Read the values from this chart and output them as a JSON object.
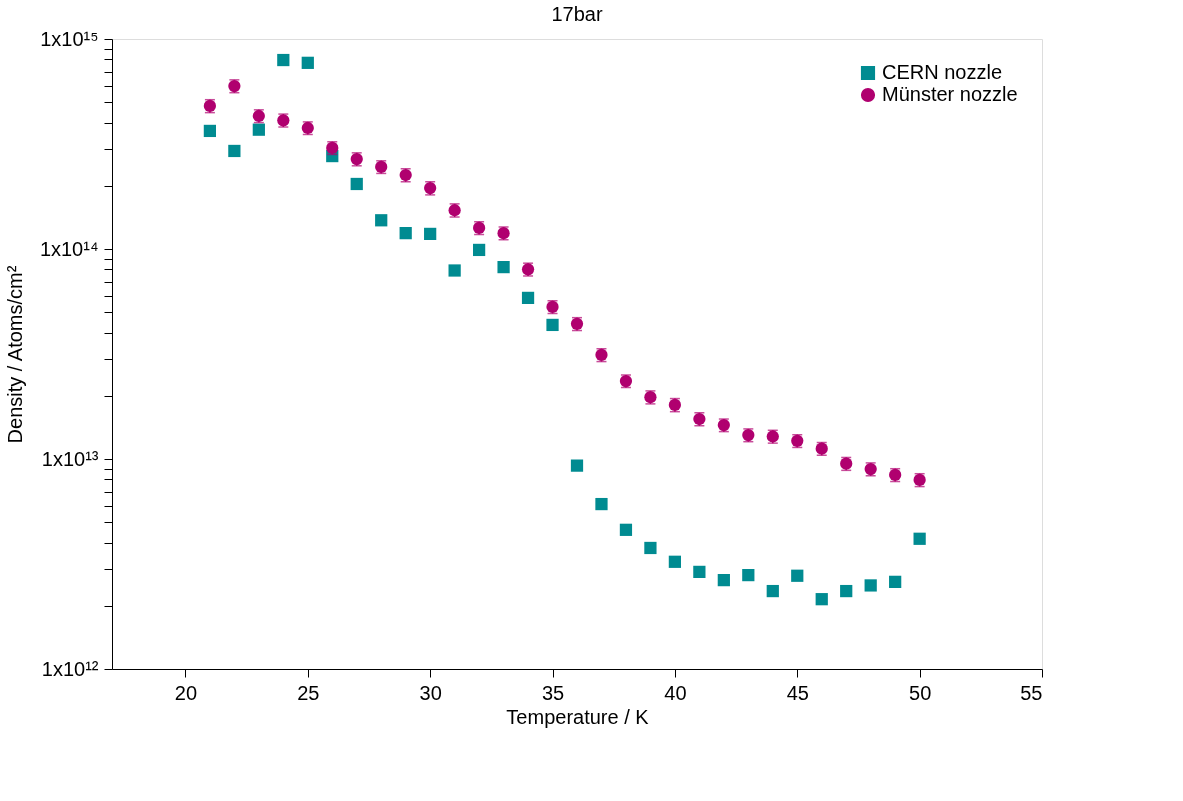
{
  "chart_data": {
    "type": "scatter",
    "title": "17bar",
    "xlabel": "Temperature / K",
    "ylabel": "Density / Atoms/cm²",
    "x": [
      21,
      22,
      23,
      24,
      25,
      26,
      27,
      28,
      29,
      30,
      31,
      32,
      33,
      34,
      35,
      36,
      37,
      38,
      39,
      40,
      41,
      42,
      43,
      44,
      45,
      46,
      47,
      48,
      49,
      50
    ],
    "series": [
      {
        "name": "CERN nozzle",
        "color": "#008b91",
        "marker": "square",
        "values": [
          365000000000000.0,
          293000000000000.0,
          370000000000000.0,
          794000000000000.0,
          770000000000000.0,
          277000000000000.0,
          204000000000000.0,
          137000000000000.0,
          119000000000000.0,
          118000000000000.0,
          79000000000000.0,
          99000000000000.0,
          82000000000000.0,
          58500000000000.0,
          43500000000000.0,
          9300000000000.0,
          6100000000000.0,
          4600000000000.0,
          3770000000000.0,
          3240000000000.0,
          2900000000000.0,
          2650000000000.0,
          2800000000000.0,
          2350000000000.0,
          2780000000000.0,
          2150000000000.0,
          2350000000000.0,
          2500000000000.0,
          2600000000000.0,
          4170000000000.0
        ]
      },
      {
        "name": "Münster nozzle",
        "color": "#b0006f",
        "marker": "circle",
        "values": [
          480000000000000.0,
          597000000000000.0,
          430000000000000.0,
          410000000000000.0,
          377000000000000.0,
          303000000000000.0,
          268000000000000.0,
          246000000000000.0,
          225000000000000.0,
          195000000000000.0,
          153000000000000.0,
          126000000000000.0,
          119000000000000.0,
          80000000000000.0,
          53000000000000.0,
          44000000000000.0,
          31300000000000.0,
          23500000000000.0,
          19700000000000.0,
          18100000000000.0,
          15500000000000.0,
          14500000000000.0,
          13000000000000.0,
          12800000000000.0,
          12200000000000.0,
          11200000000000.0,
          9500000000000.0,
          8950000000000.0,
          8400000000000.0,
          7950000000000.0
        ],
        "errors": [
          34000000000000.0,
          42000000000000.0,
          30000000000000.0,
          29000000000000.0,
          26000000000000.0,
          21000000000000.0,
          19000000000000.0,
          17000000000000.0,
          16000000000000.0,
          14000000000000.0,
          11000000000000.0,
          8800000000000.0,
          8300000000000.0,
          5600000000000.0,
          3700000000000.0,
          3100000000000.0,
          2200000000000.0,
          1600000000000.0,
          1400000000000.0,
          1300000000000.0,
          1100000000000.0,
          1000000000000.0,
          910000000000.0,
          900000000000.0,
          850000000000.0,
          780000000000.0,
          670000000000.0,
          630000000000.0,
          590000000000.0,
          560000000000.0
        ]
      }
    ],
    "xlim": [
      17,
      55
    ],
    "xticks": [
      20,
      25,
      30,
      35,
      40,
      45,
      50,
      55
    ],
    "log": true,
    "ylim": [
      1000000000000.0,
      1000000000000000.0
    ],
    "yticks": [
      {
        "value": 1000000000000.0,
        "label": "1x10¹²"
      },
      {
        "value": 2000000000000.0,
        "label": null
      },
      {
        "value": 3000000000000.0,
        "label": null
      },
      {
        "value": 4000000000000.0,
        "label": null
      },
      {
        "value": 5000000000000.0,
        "label": null
      },
      {
        "value": 6000000000000.0,
        "label": null
      },
      {
        "value": 7000000000000.0,
        "label": null
      },
      {
        "value": 8000000000000.0,
        "label": null
      },
      {
        "value": 9000000000000.0,
        "label": null
      },
      {
        "value": 10000000000000.0,
        "label": "1x10¹³"
      },
      {
        "value": 20000000000000.0,
        "label": null
      },
      {
        "value": 30000000000000.0,
        "label": null
      },
      {
        "value": 40000000000000.0,
        "label": null
      },
      {
        "value": 50000000000000.0,
        "label": null
      },
      {
        "value": 60000000000000.0,
        "label": null
      },
      {
        "value": 70000000000000.0,
        "label": null
      },
      {
        "value": 80000000000000.0,
        "label": null
      },
      {
        "value": 90000000000000.0,
        "label": null
      },
      {
        "value": 100000000000000.0,
        "label": "1x10¹⁴"
      },
      {
        "value": 200000000000000.0,
        "label": null
      },
      {
        "value": 300000000000000.0,
        "label": null
      },
      {
        "value": 400000000000000.0,
        "label": null
      },
      {
        "value": 500000000000000.0,
        "label": null
      },
      {
        "value": 600000000000000.0,
        "label": null
      },
      {
        "value": 700000000000000.0,
        "label": null
      },
      {
        "value": 800000000000000.0,
        "label": null
      },
      {
        "value": 900000000000000.0,
        "label": null
      },
      {
        "value": 1000000000000000.0,
        "label": "1x10¹⁵"
      }
    ],
    "grid": false,
    "legend": "top right"
  }
}
